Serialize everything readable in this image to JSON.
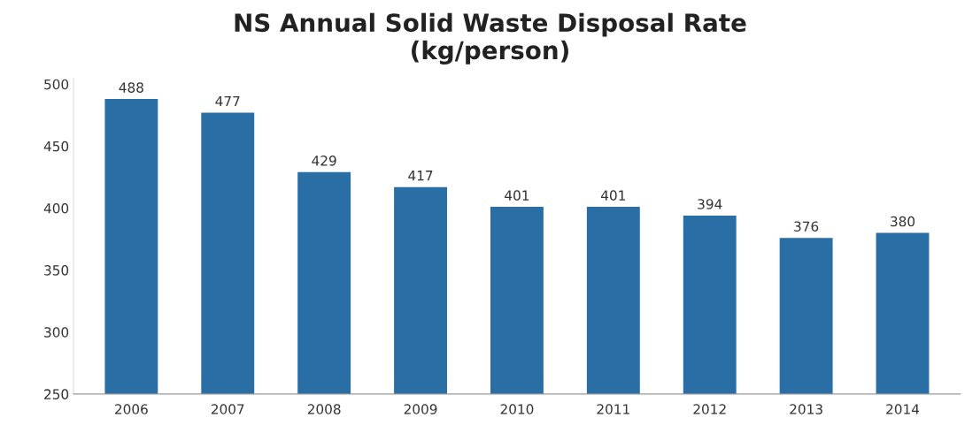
{
  "chart_data": {
    "type": "bar",
    "title": "NS Annual Solid Waste Disposal Rate\n(kg/person)",
    "categories": [
      "2006",
      "2007",
      "2008",
      "2009",
      "2010",
      "2011",
      "2012",
      "2013",
      "2014"
    ],
    "values": [
      488,
      477,
      429,
      417,
      401,
      401,
      394,
      376,
      380
    ],
    "color": "#2a6ea6",
    "ylim": [
      250,
      505
    ],
    "yticks": [
      250,
      300,
      350,
      400,
      450,
      500
    ],
    "data_labels": true,
    "grid": false
  }
}
